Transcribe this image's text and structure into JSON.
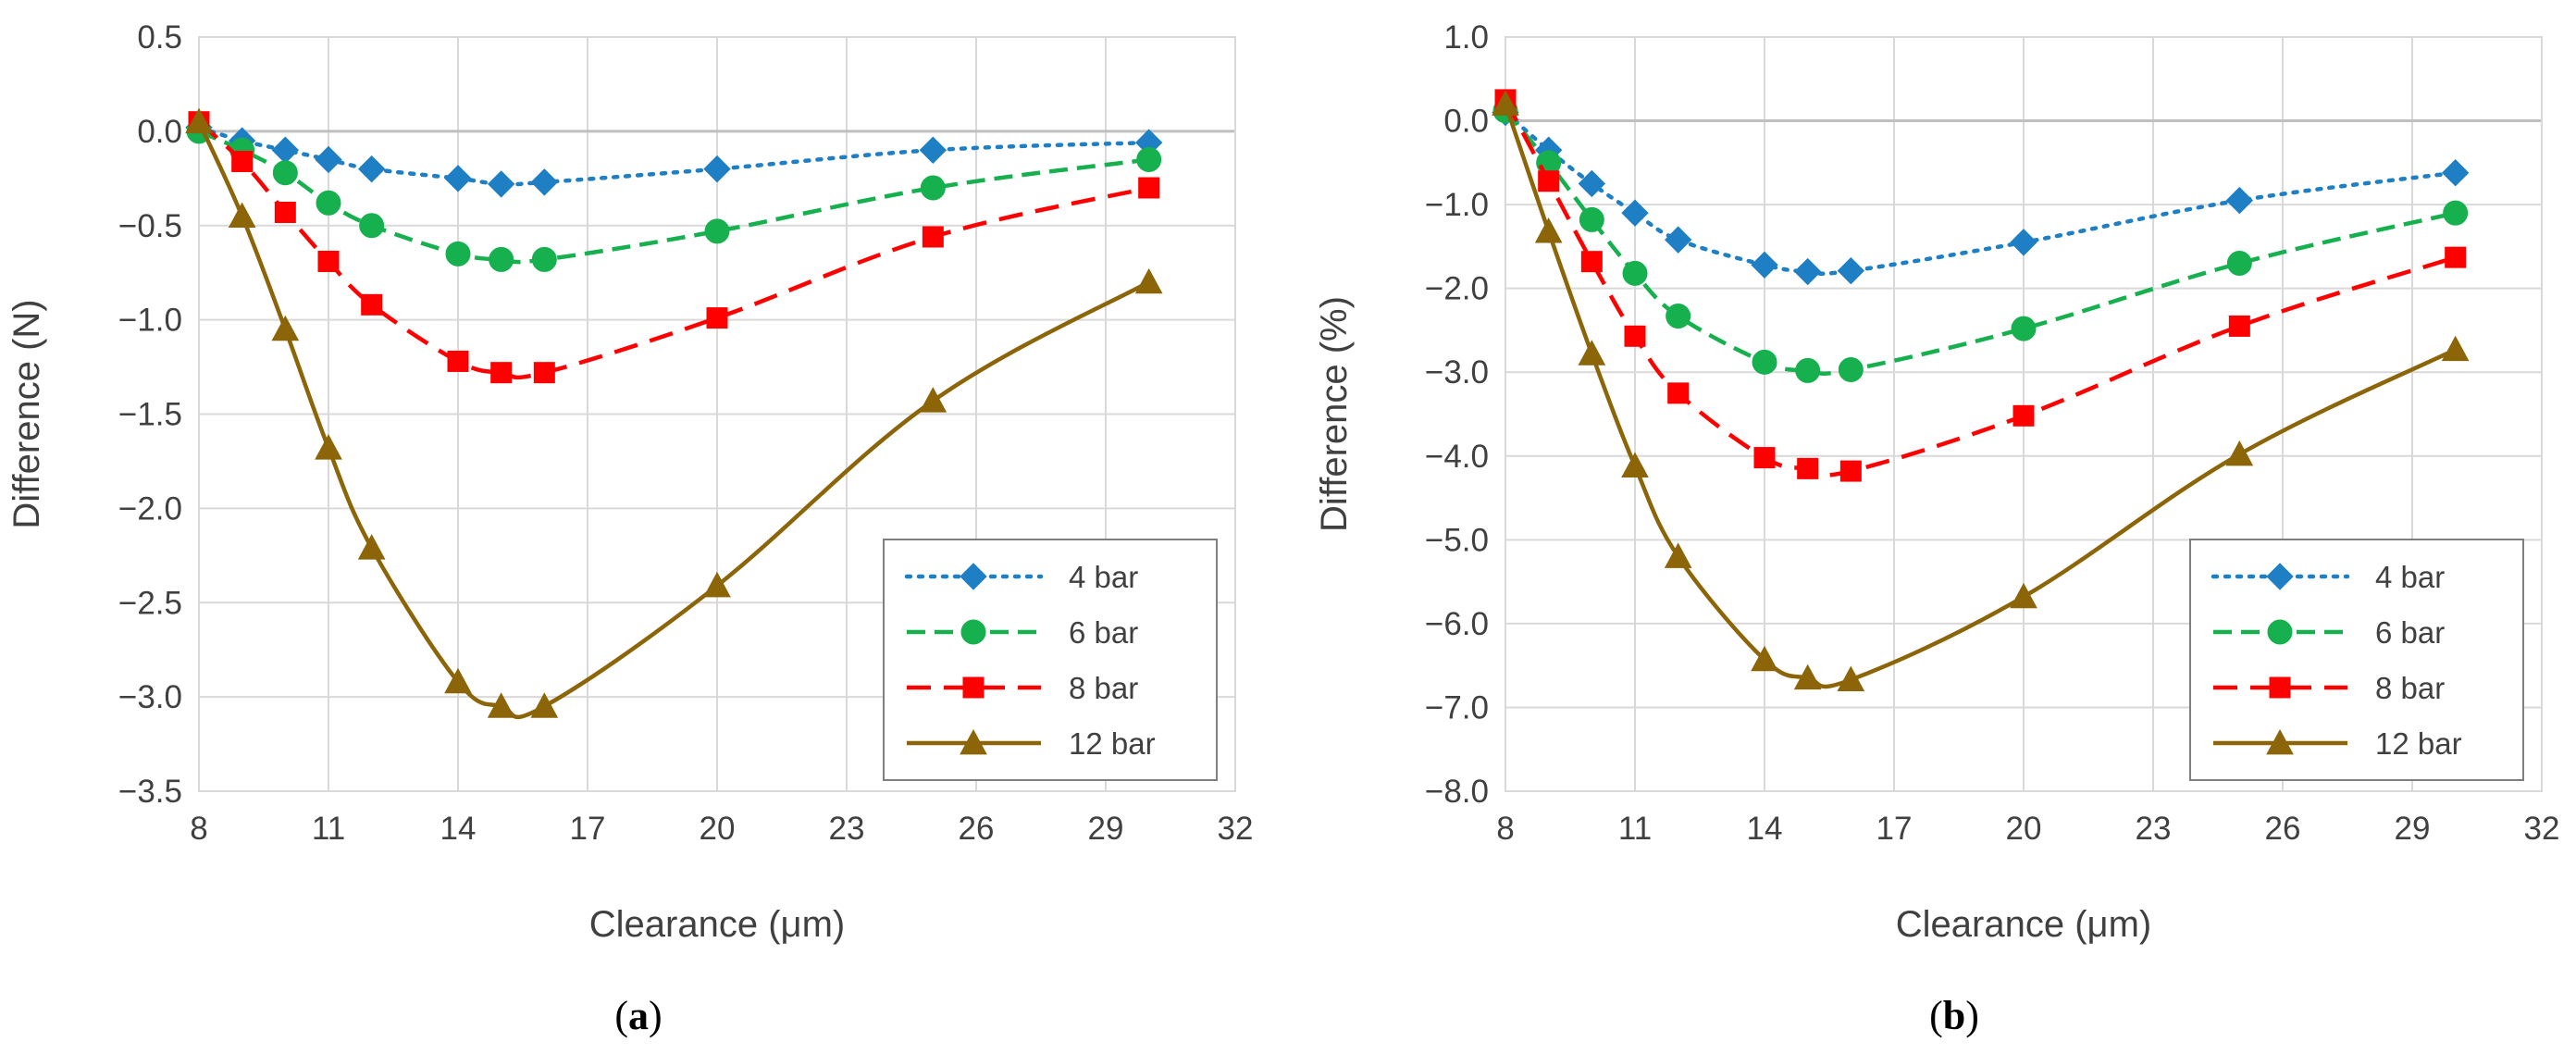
{
  "chart_data": [
    {
      "type": "line",
      "panel_label": "a",
      "caption_open": "(",
      "caption_close": ")",
      "xlabel": "Clearance (μm)",
      "ylabel": "Difference (N)",
      "xlim": [
        8,
        32
      ],
      "ylim": [
        -3.5,
        0.5
      ],
      "xticks": [
        "8",
        "11",
        "14",
        "17",
        "20",
        "23",
        "26",
        "29",
        "32"
      ],
      "yticks": [
        "0.5",
        "0.0",
        "−0.5",
        "−1.0",
        "−1.5",
        "−2.0",
        "−2.5",
        "−3.0",
        "−3.5"
      ],
      "x": [
        8,
        9,
        10,
        11,
        12,
        14,
        15,
        16,
        20,
        25,
        30
      ],
      "series": [
        {
          "name": "4 bar",
          "color": "#1f7fc4",
          "dash": "dotted",
          "marker": "diamond",
          "values": [
            0.02,
            -0.05,
            -0.1,
            -0.15,
            -0.2,
            -0.25,
            -0.28,
            -0.27,
            -0.2,
            -0.1,
            -0.06
          ]
        },
        {
          "name": "6 bar",
          "color": "#16b04f",
          "dash": "dashed",
          "marker": "circle",
          "values": [
            0.0,
            -0.1,
            -0.22,
            -0.38,
            -0.5,
            -0.65,
            -0.68,
            -0.68,
            -0.53,
            -0.3,
            -0.15
          ]
        },
        {
          "name": "8 bar",
          "color": "#ff0000",
          "dash": "longdash",
          "marker": "square",
          "values": [
            0.05,
            -0.16,
            -0.43,
            -0.69,
            -0.92,
            -1.22,
            -1.28,
            -1.28,
            -0.99,
            -0.56,
            -0.3
          ]
        },
        {
          "name": "12 bar",
          "color": "#8b6508",
          "dash": "solid",
          "marker": "triangle",
          "values": [
            0.05,
            -0.45,
            -1.05,
            -1.68,
            -2.21,
            -2.92,
            -3.05,
            -3.05,
            -2.41,
            -1.43,
            -0.8
          ]
        }
      ],
      "legend_position": "bottom-right"
    },
    {
      "type": "line",
      "panel_label": "b",
      "caption_open": "(",
      "caption_close": ")",
      "xlabel": "Clearance (μm)",
      "ylabel": "Difference (%)",
      "xlim": [
        8,
        32
      ],
      "ylim": [
        -8.0,
        1.0
      ],
      "xticks": [
        "8",
        "11",
        "14",
        "17",
        "20",
        "23",
        "26",
        "29",
        "32"
      ],
      "yticks": [
        "1.0",
        "0.0",
        "−1.0",
        "−2.0",
        "−3.0",
        "−4.0",
        "−5.0",
        "−6.0",
        "−7.0",
        "−8.0"
      ],
      "x": [
        8,
        9,
        10,
        11,
        12,
        14,
        15,
        16,
        20,
        25,
        30
      ],
      "series": [
        {
          "name": "4 bar",
          "color": "#1f7fc4",
          "dash": "dotted",
          "marker": "diamond",
          "values": [
            0.1,
            -0.35,
            -0.75,
            -1.1,
            -1.42,
            -1.72,
            -1.8,
            -1.79,
            -1.45,
            -0.95,
            -0.62
          ]
        },
        {
          "name": "6 bar",
          "color": "#16b04f",
          "dash": "dashed",
          "marker": "circle",
          "values": [
            0.12,
            -0.5,
            -1.18,
            -1.82,
            -2.33,
            -2.88,
            -2.98,
            -2.97,
            -2.48,
            -1.7,
            -1.1
          ]
        },
        {
          "name": "8 bar",
          "color": "#ff0000",
          "dash": "longdash",
          "marker": "square",
          "values": [
            0.25,
            -0.72,
            -1.68,
            -2.57,
            -3.25,
            -4.02,
            -4.15,
            -4.18,
            -3.52,
            -2.45,
            -1.63
          ]
        },
        {
          "name": "12 bar",
          "color": "#8b6508",
          "dash": "solid",
          "marker": "triangle",
          "values": [
            0.2,
            -1.32,
            -2.78,
            -4.12,
            -5.2,
            -6.43,
            -6.65,
            -6.67,
            -5.68,
            -3.98,
            -2.73
          ]
        }
      ],
      "legend_position": "bottom-right"
    }
  ]
}
